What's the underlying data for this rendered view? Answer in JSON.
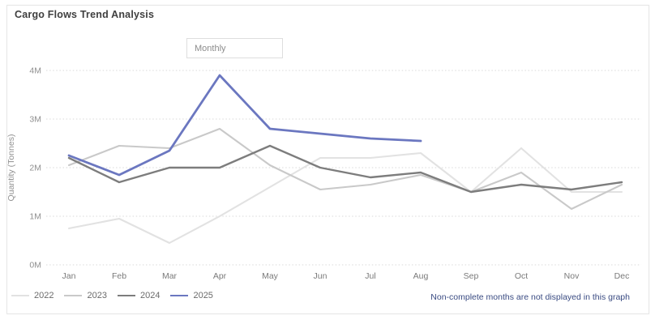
{
  "card": {
    "title": "Cargo Flows Trend Analysis"
  },
  "filter": {
    "label": "Monthly"
  },
  "footnote": "Non-complete months are not displayed in this graph",
  "chart_data": {
    "type": "line",
    "title": "Cargo Flows Trend Analysis",
    "xlabel": "",
    "ylabel": "Quantity (Tonnes)",
    "units": "million tonnes",
    "ylim_millions": [
      0,
      4
    ],
    "y_ticks": [
      "0M",
      "1M",
      "2M",
      "3M",
      "4M"
    ],
    "grid": "horizontal-dotted",
    "legend_position": "bottom-left",
    "categories": [
      "Jan",
      "Feb",
      "Mar",
      "Apr",
      "May",
      "Jun",
      "Jul",
      "Aug",
      "Sep",
      "Oct",
      "Nov",
      "Dec"
    ],
    "series": [
      {
        "name": "2022",
        "color": "#e2e2e2",
        "values_millions": [
          0.75,
          0.95,
          0.45,
          1.0,
          1.6,
          2.2,
          2.2,
          2.3,
          1.5,
          2.4,
          1.5,
          1.5
        ]
      },
      {
        "name": "2023",
        "color": "#c9c9c9",
        "values_millions": [
          2.05,
          2.45,
          2.4,
          2.8,
          2.05,
          1.55,
          1.65,
          1.85,
          1.5,
          1.9,
          1.15,
          1.65
        ]
      },
      {
        "name": "2024",
        "color": "#7d7d7d",
        "values_millions": [
          2.2,
          1.7,
          2.0,
          2.0,
          2.45,
          2.0,
          1.8,
          1.9,
          1.5,
          1.65,
          1.55,
          1.7
        ]
      },
      {
        "name": "2025",
        "color": "#6b77c0",
        "values_millions": [
          2.25,
          1.85,
          2.35,
          3.9,
          2.8,
          2.7,
          2.6,
          2.55,
          null,
          null,
          null,
          null
        ],
        "note": "data ends at Aug"
      }
    ]
  }
}
